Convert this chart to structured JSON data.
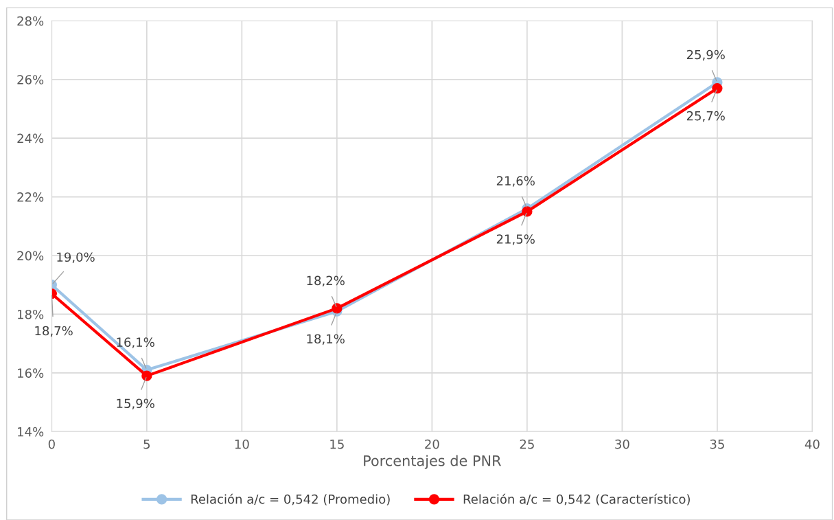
{
  "chart_data": {
    "type": "line",
    "xlabel": "Porcentajes de PNR",
    "x": [
      0,
      5,
      15,
      25,
      35
    ],
    "xlim": [
      0,
      40
    ],
    "xticks": [
      0,
      5,
      10,
      15,
      20,
      25,
      30,
      35,
      40
    ],
    "ylim": [
      14,
      28
    ],
    "yticks": [
      {
        "value": 14,
        "label": "14%"
      },
      {
        "value": 16,
        "label": "16%"
      },
      {
        "value": 18,
        "label": "18%"
      },
      {
        "value": 20,
        "label": "20%"
      },
      {
        "value": 22,
        "label": "22%"
      },
      {
        "value": 24,
        "label": "24%"
      },
      {
        "value": 26,
        "label": "26%"
      },
      {
        "value": 28,
        "label": "28%"
      }
    ],
    "series": [
      {
        "name": "Relación a/c = 0,542 (Promedio)",
        "color": "#9dc3e6",
        "values": [
          19.0,
          16.1,
          18.1,
          21.6,
          25.9
        ],
        "value_labels": [
          "19,0%",
          "16,1%",
          "18,1%",
          "21,6%",
          "25,9%"
        ]
      },
      {
        "name": "Relación a/c = 0,542 (Característico)",
        "color": "#ff0000",
        "values": [
          18.7,
          15.9,
          18.2,
          21.5,
          25.7
        ],
        "value_labels": [
          "18,7%",
          "15,9%",
          "18,2%",
          "21,5%",
          "25,7%"
        ]
      }
    ],
    "grid": true,
    "legend": "bottom",
    "marker": "circle",
    "line_style": "solid"
  }
}
